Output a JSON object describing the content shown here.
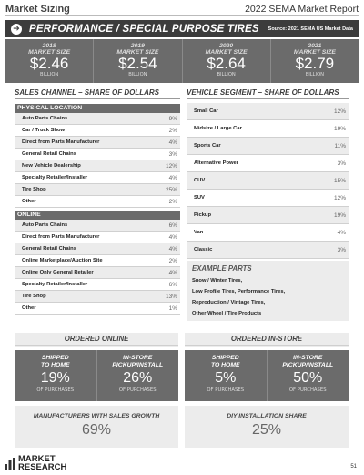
{
  "header": {
    "section": "Market Sizing",
    "report": "2022 SEMA Market Report"
  },
  "banner": {
    "title": "PERFORMANCE / SPECIAL PURPOSE TIRES",
    "source": "Source: 2021 SEMA US Market Data",
    "icon": "arrow-right-icon"
  },
  "market_size": [
    {
      "year": "2018",
      "label": "MARKET SIZE",
      "value": "$2.46",
      "unit": "BILLION"
    },
    {
      "year": "2019",
      "label": "MARKET SIZE",
      "value": "$2.54",
      "unit": "BILLION"
    },
    {
      "year": "2020",
      "label": "MARKET SIZE",
      "value": "$2.64",
      "unit": "BILLION"
    },
    {
      "year": "2021",
      "label": "MARKET SIZE",
      "value": "$2.79",
      "unit": "BILLION"
    }
  ],
  "sales_channel": {
    "heading": "SALES CHANNEL – SHARE OF DOLLARS",
    "physical": {
      "label": "PHYSICAL LOCATION",
      "rows": [
        {
          "label": "Auto Parts Chains",
          "value": "9%"
        },
        {
          "label": "Car / Truck Show",
          "value": "2%"
        },
        {
          "label": "Direct from Parts Manufacturer",
          "value": "4%"
        },
        {
          "label": "General Retail Chains",
          "value": "3%"
        },
        {
          "label": "New Vehicle Dealership",
          "value": "12%"
        },
        {
          "label": "Specialty Retailer/Installer",
          "value": "4%"
        },
        {
          "label": "Tire Shop",
          "value": "25%"
        },
        {
          "label": "Other",
          "value": "2%"
        }
      ]
    },
    "online": {
      "label": "ONLINE",
      "rows": [
        {
          "label": "Auto Parts Chains",
          "value": "6%"
        },
        {
          "label": "Direct from Parts Manufacturer",
          "value": "4%"
        },
        {
          "label": "General Retail Chains",
          "value": "4%"
        },
        {
          "label": "Online Marketplace/Auction Site",
          "value": "2%"
        },
        {
          "label": "Online Only General Retailer",
          "value": "4%"
        },
        {
          "label": "Specialty Retailer/Installer",
          "value": "6%"
        },
        {
          "label": "Tire Shop",
          "value": "13%"
        },
        {
          "label": "Other",
          "value": "1%"
        }
      ]
    }
  },
  "vehicle_segment": {
    "heading": "VEHICLE SEGMENT – SHARE OF DOLLARS",
    "rows": [
      {
        "label": "Small Car",
        "value": "12%"
      },
      {
        "label": "Midsize / Large Car",
        "value": "19%"
      },
      {
        "label": "Sports Car",
        "value": "11%"
      },
      {
        "label": "Alternative Power",
        "value": "3%"
      },
      {
        "label": "CUV",
        "value": "15%"
      },
      {
        "label": "SUV",
        "value": "12%"
      },
      {
        "label": "Pickup",
        "value": "19%"
      },
      {
        "label": "Van",
        "value": "4%"
      },
      {
        "label": "Classic",
        "value": "3%"
      }
    ]
  },
  "examples": {
    "heading": "EXAMPLE PARTS",
    "items": [
      "Snow / Winter Tires,",
      "Low Profile Tires, Performance Tires,",
      "Reproduction / Vintage Tires,",
      "Other Wheel / Tire Products"
    ]
  },
  "ordered_online": {
    "heading": "ORDERED ONLINE",
    "cells": [
      {
        "label1": "SHIPPED",
        "label2": "TO HOME",
        "value": "19%",
        "unit": "OF PURCHASES"
      },
      {
        "label1": "IN-STORE",
        "label2": "PICKUP/INSTALL",
        "value": "26%",
        "unit": "OF PURCHASES"
      }
    ]
  },
  "ordered_instore": {
    "heading": "ORDERED IN-STORE",
    "cells": [
      {
        "label1": "SHIPPED",
        "label2": "TO HOME",
        "value": "5%",
        "unit": "OF PURCHASES"
      },
      {
        "label1": "IN-STORE",
        "label2": "PICKUP/INSTALL",
        "value": "50%",
        "unit": "OF PURCHASES"
      }
    ]
  },
  "stats": [
    {
      "label": "MANUFACTURERS WITH SALES GROWTH",
      "value": "69%"
    },
    {
      "label": "DIY INSTALLATION SHARE",
      "value": "25%"
    }
  ],
  "footer": {
    "logo_line1": "MARKET",
    "logo_line2": "RESEARCH",
    "page": "51"
  }
}
